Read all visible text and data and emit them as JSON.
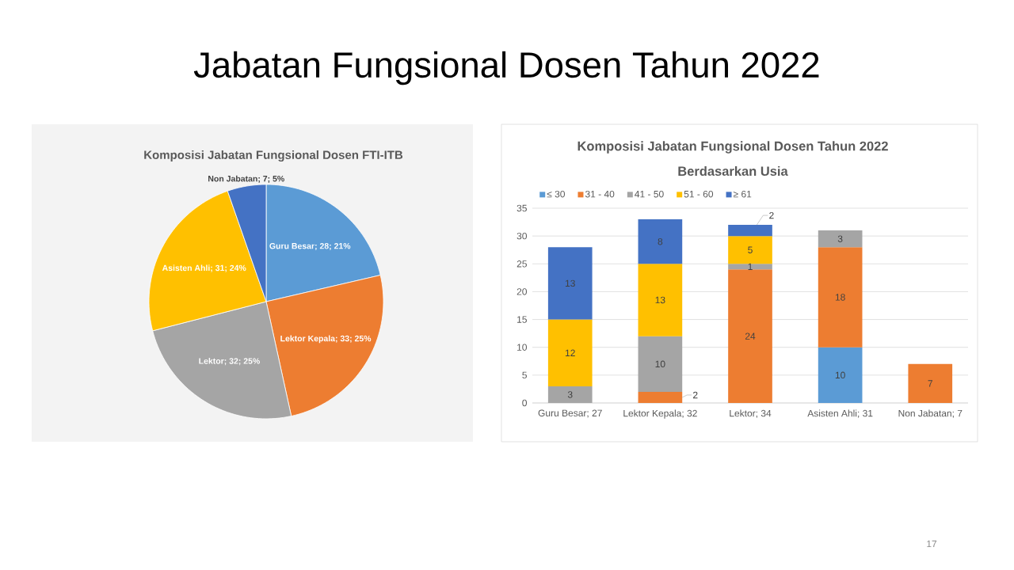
{
  "chart_data": [
    {
      "type": "other",
      "title": "Jabatan Fungsional Dosen Tahun 2022",
      "annotations": [
        "17"
      ]
    },
    {
      "type": "pie",
      "title": "Komposisi Jabatan Fungsional Dosen FTI-ITB",
      "categories": [
        "Guru Besar",
        "Lektor Kepala",
        "Lektor",
        "Asisten Ahli",
        "Non Jabatan"
      ],
      "values": [
        28,
        33,
        32,
        31,
        7
      ],
      "colors": [
        "#5b9bd5",
        "#ed7d31",
        "#a5a5a5",
        "#ffc000",
        "#4472c4"
      ],
      "value_labels": [
        "; 28; 21%",
        "; 33; 25%",
        "; 32; 25%",
        "; 31; 24%",
        "; 7; 5%"
      ]
    },
    {
      "type": "bar",
      "title": "Komposisi Jabatan Fungsional Dosen Tahun 2022",
      "subtitle": "Berdasarkan Usia",
      "categories": [
        "Guru Besar; 27",
        "Lektor Kepala; 32",
        "Lektor; 34",
        "Asisten Ahli; 31",
        "Non Jabatan; 7"
      ],
      "stacked": true,
      "series": [
        {
          "name": "≤ 30",
          "color": "#5b9bd5",
          "values": [
            null,
            null,
            null,
            10,
            null
          ]
        },
        {
          "name": "31 - 40",
          "color": "#ed7d31",
          "values": [
            null,
            2,
            24,
            18,
            7
          ]
        },
        {
          "name": "41 - 50",
          "color": "#a5a5a5",
          "values": [
            3,
            10,
            1,
            3,
            null
          ]
        },
        {
          "name": "51 - 60",
          "color": "#ffc000",
          "values": [
            12,
            13,
            5,
            null,
            null
          ]
        },
        {
          "name": "≥ 61",
          "color": "#4472c4",
          "values": [
            13,
            8,
            2,
            null,
            null
          ]
        }
      ],
      "ylim": [
        0,
        35
      ],
      "yticks": [
        0,
        5,
        10,
        15,
        20,
        25,
        30,
        35
      ],
      "grid": "y",
      "legend": "top left",
      "data_labels": true
    }
  ]
}
